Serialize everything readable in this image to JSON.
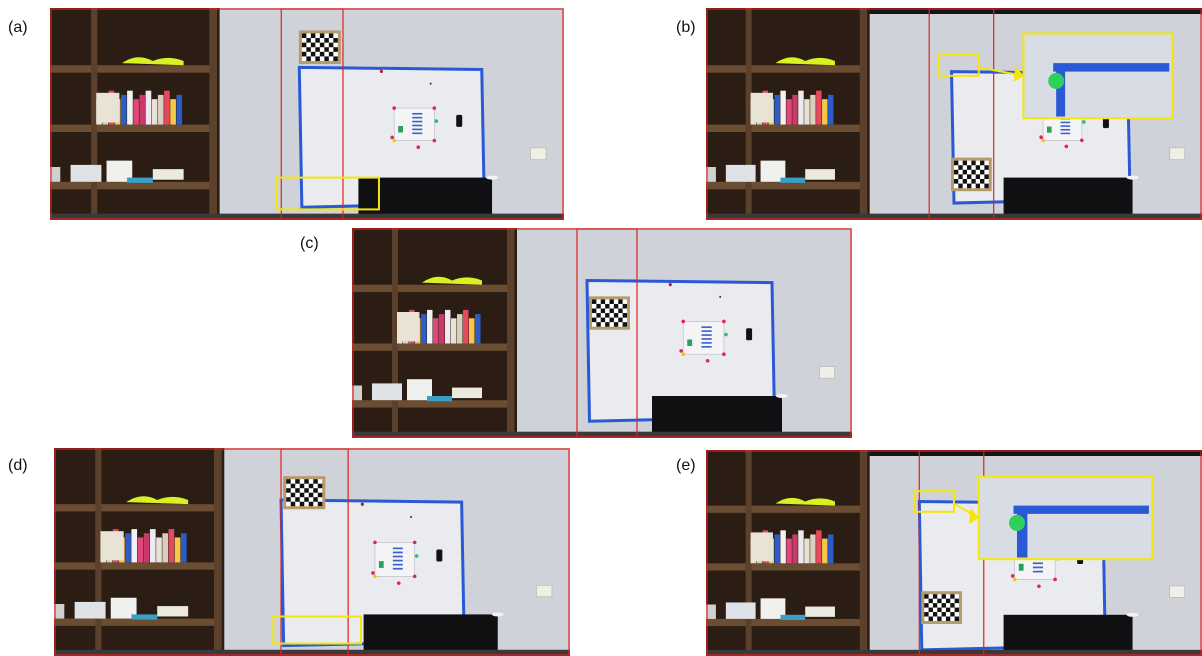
{
  "figure": {
    "panels": [
      {
        "label": "(a)",
        "zoom_inset": false,
        "board_in_view": "full"
      },
      {
        "label": "(b)",
        "zoom_inset": true,
        "board_in_view": "full"
      },
      {
        "label": "(c)",
        "zoom_inset": false,
        "board_in_view": "full"
      },
      {
        "label": "(d)",
        "zoom_inset": false,
        "board_in_view": "full"
      },
      {
        "label": "(e)",
        "zoom_inset": true,
        "board_in_view": "full"
      }
    ]
  }
}
